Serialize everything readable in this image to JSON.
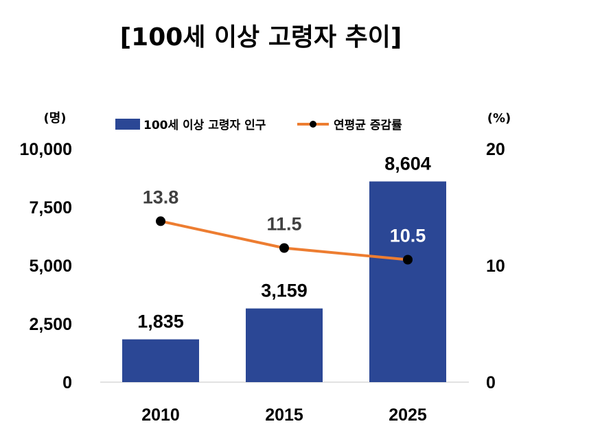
{
  "chart_data": {
    "type": "bar",
    "title": "[100세 이상 고령자 추이]",
    "categories": [
      "2010",
      "2015",
      "2025"
    ],
    "y_unit": "(명)",
    "y2_unit": "(%)",
    "ylim": [
      0,
      10000
    ],
    "y_ticks": [
      "0",
      "2,500",
      "5,000",
      "7,500",
      "10,000"
    ],
    "y2lim": [
      0,
      20
    ],
    "y2_ticks": [
      "0",
      "10",
      "20"
    ],
    "legend_position": "top",
    "grid": false,
    "series": [
      {
        "name": "100세 이상 고령자 인구",
        "type": "bar",
        "axis": "left",
        "color": "#2B4795",
        "values": [
          1835,
          3159,
          8604
        ],
        "labels": [
          "1,835",
          "3,159",
          "8,604"
        ]
      },
      {
        "name": "연평균 증감률",
        "type": "line",
        "axis": "right",
        "color": "#ED7D31",
        "marker_color": "#000000",
        "values": [
          13.8,
          11.5,
          10.5
        ],
        "labels": [
          "13.8",
          "11.5",
          "10.5"
        ],
        "label_colors": [
          "#404040",
          "#404040",
          "#FFFFFF"
        ]
      }
    ]
  }
}
